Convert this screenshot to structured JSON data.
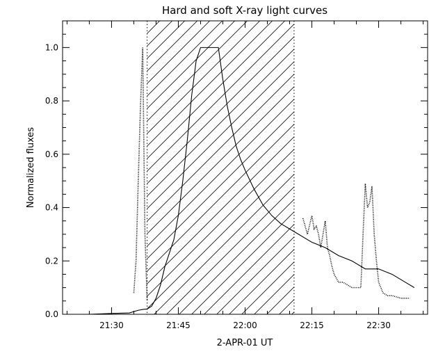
{
  "chart_data": {
    "type": "line",
    "title": "Hard and soft X-ray light curves",
    "xlabel": "2-APR-01  UT",
    "ylabel": "Normalized fluxes",
    "x_unit": "UT (hours:minutes)",
    "xlim": [
      "21:19",
      "22:41"
    ],
    "ylim": [
      0,
      1.1
    ],
    "x_ticks": [
      "21:30",
      "21:45",
      "22:00",
      "22:15",
      "22:30"
    ],
    "y_ticks": [
      "0.0",
      "0.2",
      "0.4",
      "0.6",
      "0.8",
      "1.0"
    ],
    "grid": false,
    "legend": "none",
    "shaded_interval": {
      "x_start": "21:38",
      "x_end": "22:11",
      "style": "diagonal hatch"
    },
    "series": [
      {
        "style": "solid",
        "x": [
          "21:19",
          "21:25",
          "21:30",
          "21:34",
          "21:36",
          "21:37",
          "21:38",
          "21:39",
          "21:40",
          "21:41",
          "21:42",
          "21:43",
          "21:44",
          "21:45",
          "21:46",
          "21:47",
          "21:48",
          "21:49",
          "21:50",
          "21:51",
          "21:52",
          "21:53",
          "21:54",
          "21:55",
          "21:56",
          "21:57",
          "21:58",
          "21:59",
          "22:00",
          "22:02",
          "22:04",
          "22:06",
          "22:08",
          "22:10",
          "22:12",
          "22:15",
          "22:18",
          "22:21",
          "22:24",
          "22:27",
          "22:30",
          "22:33",
          "22:36",
          "22:38"
        ],
        "y": [
          0.0,
          0.0,
          0.003,
          0.005,
          0.015,
          0.018,
          0.02,
          0.03,
          0.06,
          0.11,
          0.18,
          0.23,
          0.28,
          0.37,
          0.5,
          0.65,
          0.82,
          0.95,
          1.0,
          1.0,
          1.0,
          1.0,
          1.0,
          0.88,
          0.78,
          0.7,
          0.63,
          0.58,
          0.54,
          0.47,
          0.41,
          0.37,
          0.34,
          0.32,
          0.3,
          0.27,
          0.25,
          0.22,
          0.2,
          0.17,
          0.17,
          0.15,
          0.12,
          0.1
        ]
      },
      {
        "style": "dotted",
        "x": [
          "21:35",
          "21:35.5",
          "21:36",
          "21:36.5",
          "21:37",
          "21:37.5",
          "21:38",
          "22:13",
          "22:14",
          "22:15",
          "22:15.5",
          "22:16",
          "22:16.5",
          "22:17",
          "22:17.5",
          "22:18",
          "22:18.5",
          "22:19",
          "22:19.5",
          "22:20",
          "22:21",
          "22:22",
          "22:24",
          "22:26",
          "22:26.5",
          "22:27",
          "22:27.5",
          "22:28",
          "22:28.5",
          "22:29",
          "22:29.5",
          "22:30",
          "22:31",
          "22:32",
          "22:33",
          "22:35",
          "22:37"
        ],
        "y": [
          0.08,
          0.2,
          0.5,
          0.78,
          1.0,
          0.3,
          0.05,
          0.36,
          0.3,
          0.37,
          0.32,
          0.33,
          0.3,
          0.25,
          0.3,
          0.35,
          0.25,
          0.22,
          0.18,
          0.15,
          0.12,
          0.12,
          0.1,
          0.1,
          0.3,
          0.49,
          0.4,
          0.42,
          0.48,
          0.3,
          0.2,
          0.12,
          0.08,
          0.07,
          0.07,
          0.06,
          0.06
        ]
      }
    ]
  }
}
